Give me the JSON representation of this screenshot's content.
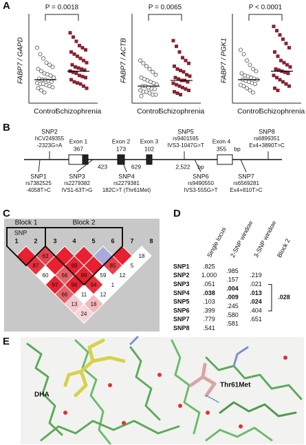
{
  "panel_a": {
    "label": "A",
    "plots": [
      {
        "type": "dot",
        "p_value": "P = 0.0018",
        "y_label": "FABP7 / GAPD",
        "categories": [
          "Control",
          "Schizophrenia"
        ],
        "ylim": [
          0,
          4
        ],
        "colors": [
          "#ffffff",
          "#8b2232"
        ],
        "groups": [
          [
            2.6,
            2.3,
            2.1,
            1.9,
            1.8,
            1.7,
            1.6,
            1.5,
            1.4,
            1.35,
            1.3,
            1.2,
            1.15,
            1.1,
            1.1,
            1.05,
            1.0,
            0.95,
            0.9,
            0.9,
            0.85,
            0.8,
            0.75,
            0.7,
            0.6,
            0.5
          ],
          [
            3.3,
            3.1,
            2.9,
            2.7,
            2.6,
            2.5,
            2.4,
            2.3,
            2.2,
            2.1,
            2.0,
            1.9,
            1.8,
            1.7,
            1.65,
            1.6,
            1.55,
            1.5,
            1.45,
            1.4,
            1.3,
            1.25,
            1.2,
            1.1,
            1.0,
            0.95,
            0.9,
            0.8,
            0.7
          ]
        ],
        "medians": [
          1.1,
          1.5
        ]
      },
      {
        "type": "dot",
        "p_value": "P = 0.0065",
        "y_label": "FABP7 / ACTB",
        "categories": [
          "Control",
          "Schizophrenia"
        ],
        "ylim": [
          0,
          3
        ],
        "colors": [
          "#ffffff",
          "#8b2232"
        ],
        "groups": [
          [
            1.5,
            1.4,
            1.3,
            1.2,
            1.1,
            1.0,
            0.9,
            0.85,
            0.8,
            0.75,
            0.7,
            0.65,
            0.6,
            0.6,
            0.55,
            0.5,
            0.5,
            0.45,
            0.4,
            0.4,
            0.35,
            0.3,
            0.3,
            0.25
          ],
          [
            2.2,
            2.0,
            1.8,
            1.6,
            1.5,
            1.4,
            1.3,
            1.2,
            1.15,
            1.1,
            1.0,
            0.95,
            0.9,
            0.85,
            0.8,
            0.8,
            0.75,
            0.7,
            0.65,
            0.6,
            0.55,
            0.5,
            0.45,
            0.4,
            0.35,
            0.3
          ]
        ],
        "medians": [
          0.6,
          0.8
        ]
      },
      {
        "type": "dot",
        "p_value": "P < 0.0001",
        "y_label": "FABP7 / PGK1",
        "categories": [
          "Control",
          "Schizophrenia"
        ],
        "ylim": [
          0,
          4
        ],
        "colors": [
          "#ffffff",
          "#8b2232"
        ],
        "groups": [
          [
            2.5,
            2.3,
            2.0,
            1.8,
            1.6,
            1.5,
            1.4,
            1.3,
            1.25,
            1.2,
            1.15,
            1.1,
            1.1,
            1.05,
            1.0,
            0.95,
            0.9,
            0.85,
            0.8,
            0.7,
            0.6,
            0.5
          ],
          [
            3.6,
            3.4,
            3.2,
            3.0,
            2.8,
            2.6,
            2.4,
            2.2,
            2.0,
            1.9,
            1.8,
            1.7,
            1.6,
            1.55,
            1.5,
            1.45,
            1.4,
            1.3,
            1.2,
            1.1,
            1.0,
            0.9,
            0.8,
            0.7,
            0.6
          ]
        ],
        "medians": [
          1.1,
          1.5
        ]
      }
    ]
  },
  "panel_b": {
    "label": "B",
    "exons": [
      {
        "name": "Exon 1",
        "size": "367"
      },
      {
        "name": "Exon 2",
        "size": "173"
      },
      {
        "name": "Exon 3",
        "size": "102"
      },
      {
        "name": "Exon 4",
        "size": "355"
      }
    ],
    "exon_unit": "bp",
    "introns": [
      "423",
      "629",
      "2,522"
    ],
    "intron_unit": "bp",
    "snps": [
      {
        "name": "SNP1",
        "id": "rs7382525",
        "change": "-4058T>C"
      },
      {
        "name": "SNP2",
        "id": "hCV249355",
        "change": "-2323G>A"
      },
      {
        "name": "SNP3",
        "id": "rs2279382",
        "change": "IVS1-63T>G"
      },
      {
        "name": "SNP4",
        "id": "rs2279381",
        "change": "182C>T (Thr61Met)"
      },
      {
        "name": "SNP5",
        "id": "rs9401595",
        "change": "IVS3-1047G>T"
      },
      {
        "name": "SNP6",
        "id": "rs9490550",
        "change": "IVS3-555G>T"
      },
      {
        "name": "SNP7",
        "id": "rs6569281",
        "change": "Ex4+810T>C"
      },
      {
        "name": "SNP8",
        "id": "rs6899351",
        "change": "Ex4+3890T>C"
      }
    ]
  },
  "panel_c": {
    "label": "C",
    "blocks": [
      "Block 1",
      "Block 2"
    ],
    "marker_header": "SNP",
    "markers": [
      "1",
      "2",
      "3",
      "4",
      "5",
      "6",
      "7",
      "8"
    ],
    "ld_rows": [
      [
        {
          "label": null,
          "color": "#e8202f"
        },
        {
          "label": "63",
          "color": "#e8404c"
        },
        {
          "label": null,
          "color": "#e8202f"
        },
        {
          "label": null,
          "color": "#e8202f"
        },
        {
          "label": null,
          "color": "#a9a9dd"
        },
        {
          "label": null,
          "color": "#e8202f"
        },
        {
          "label": "18",
          "color": "#ffffff"
        }
      ],
      [
        {
          "label": "87",
          "color": "#e8303c"
        },
        {
          "label": null,
          "color": "#e8202f"
        },
        {
          "label": "99",
          "color": "#e8202f"
        },
        {
          "label": null,
          "color": "#e8202f"
        },
        {
          "label": "85",
          "color": "#e8404c"
        },
        {
          "label": "5",
          "color": "#ffffff"
        }
      ],
      [
        {
          "label": "60",
          "color": "#ffffff"
        },
        {
          "label": "66",
          "color": "#e8606a"
        },
        {
          "label": "99",
          "color": "#e8202f"
        },
        {
          "label": "59",
          "color": "#ffffff"
        },
        {
          "label": "12",
          "color": "#ffffff"
        }
      ],
      [
        {
          "label": "97",
          "color": "#e8202f"
        },
        {
          "label": "96",
          "color": "#e8202f"
        },
        {
          "label": "94",
          "color": "#e8303c"
        },
        {
          "label": "1",
          "color": "#ffffff"
        }
      ],
      [
        {
          "label": "66",
          "color": "#e8606a"
        },
        {
          "label": "11",
          "color": "#ffffff"
        },
        {
          "label": "12",
          "color": "#ffffff"
        }
      ],
      [
        {
          "label": "13",
          "color": "#f7c8cc"
        },
        {
          "label": "18",
          "color": "#f4b8bd"
        }
      ],
      [
        {
          "label": "24",
          "color": "#f7d4d7"
        }
      ]
    ]
  },
  "panel_d": {
    "label": "D",
    "columns": [
      "Single locus",
      "2-SNP window",
      "3-SNP window",
      "Block 2"
    ],
    "rows": [
      "SNP1",
      "SNP2",
      "SNP3",
      "SNP4",
      "SNP5",
      "SNP6",
      "SNP7",
      "SNP8"
    ],
    "single_locus": [
      ".825",
      "1.000",
      ".051",
      {
        "text": ".038",
        "bold": true
      },
      ".103",
      ".399",
      ".779",
      ".541"
    ],
    "two_snp": [
      ".985",
      ".157",
      {
        "text": ".004",
        "bold": true
      },
      {
        "text": ".009",
        "bold": true
      },
      ".245",
      ".580",
      ".581"
    ],
    "three_snp": [
      ".219",
      ".021",
      {
        "text": ".013",
        "bold": true
      },
      {
        "text": ".024",
        "bold": true
      },
      ".404",
      ".651"
    ],
    "block_2": {
      "text": ".028",
      "bold": true
    }
  },
  "panel_e": {
    "label": "E",
    "labels": [
      "DHA",
      "Thr61Met"
    ]
  }
}
